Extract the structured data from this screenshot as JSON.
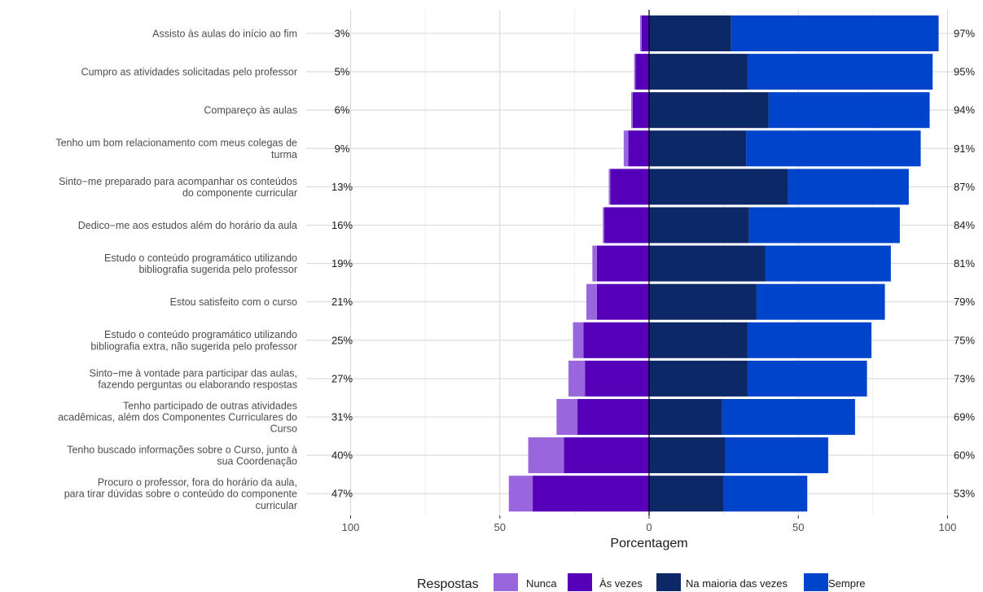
{
  "chart_data": {
    "type": "bar",
    "orientation": "horizontal-diverging",
    "xlabel": "Porcentagem",
    "xticks": [
      "100",
      "50",
      "0",
      "50",
      "100"
    ],
    "xlim": [
      -100,
      100
    ],
    "grid": true,
    "legend": {
      "title": "Respostas",
      "position": "bottom",
      "entries": [
        "Nunca",
        "Às vezes",
        "Na maioria das vezes",
        "Sempre"
      ]
    },
    "colors": {
      "Nunca": "#9966dd",
      "Às vezes": "#5500b8",
      "Na maioria das vezes": "#0d2866",
      "Sempre": "#0044cc"
    },
    "categories": [
      [
        "Assisto às aulas do início ao fim"
      ],
      [
        "Cumpro as atividades solicitadas pelo professor"
      ],
      [
        "Compareço às aulas"
      ],
      [
        "Tenho um bom relacionamento com meus colegas de",
        "turma"
      ],
      [
        "Sinto−me preparado para acompanhar os conteúdos",
        "do componente curricular"
      ],
      [
        "Dedico−me aos estudos além do horário da aula"
      ],
      [
        "Estudo o conteúdo programático utilizando",
        "bibliografia sugerida pelo professor"
      ],
      [
        "Estou satisfeito com o curso"
      ],
      [
        "Estudo o conteúdo programático utilizando",
        "bibliografia extra, não sugerida pelo professor"
      ],
      [
        "Sinto−me à vontade para participar das aulas,",
        "fazendo perguntas ou elaborando respostas"
      ],
      [
        "Tenho participado de outras atividades",
        "acadêmicas, além dos Componentes Curriculares do",
        "Curso"
      ],
      [
        "Tenho buscado informações sobre o Curso, junto à",
        "sua Coordenação"
      ],
      [
        "Procuro o professor, fora do horário da aula,",
        "para tirar dúvidas sobre o conteúdo do componente",
        "curricular"
      ]
    ],
    "series": [
      {
        "name": "Nunca",
        "values": [
          0.5,
          0.5,
          0.5,
          1.5,
          0.5,
          0.5,
          1.5,
          3.5,
          3.5,
          5.5,
          7,
          12,
          8
        ]
      },
      {
        "name": "Às vezes",
        "values": [
          2.5,
          4.5,
          5.5,
          7,
          13,
          15,
          17.5,
          17.5,
          22,
          21.5,
          24,
          28.5,
          39
        ]
      },
      {
        "name": "Na maioria das vezes",
        "values": [
          27.5,
          33,
          40,
          32.5,
          46.5,
          33.5,
          39,
          36,
          33,
          33,
          24.5,
          25.5,
          25
        ]
      },
      {
        "name": "Sempre",
        "values": [
          69.5,
          62,
          54,
          58.5,
          40.5,
          50.5,
          42,
          43,
          41.5,
          40,
          44.5,
          34.5,
          28
        ]
      }
    ],
    "left_totals": [
      "3%",
      "5%",
      "6%",
      "9%",
      "13%",
      "16%",
      "19%",
      "21%",
      "25%",
      "27%",
      "31%",
      "40%",
      "47%"
    ],
    "right_totals": [
      "97%",
      "95%",
      "94%",
      "91%",
      "87%",
      "84%",
      "81%",
      "79%",
      "75%",
      "73%",
      "69%",
      "60%",
      "53%"
    ]
  }
}
